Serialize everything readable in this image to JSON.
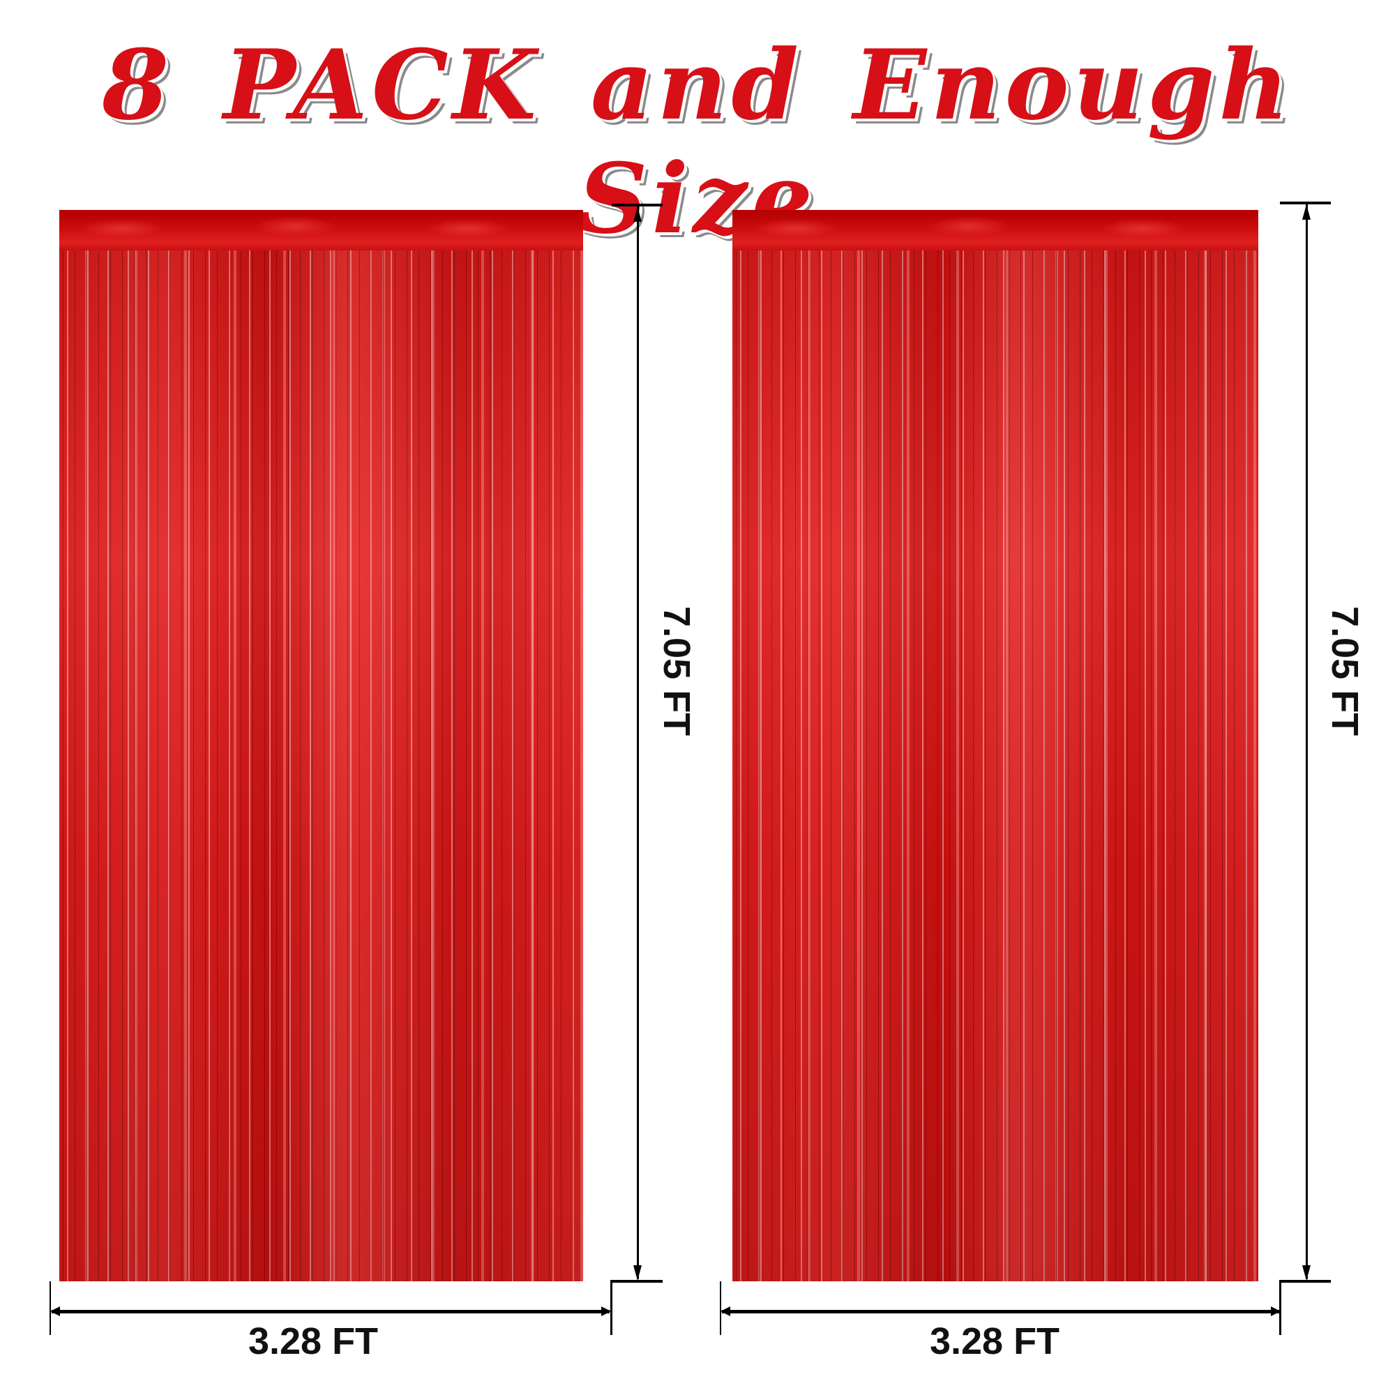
{
  "title": "8 PACK and Enough Size",
  "colors": {
    "title": "#d70f17",
    "curtain": "#d81818"
  },
  "curtains": [
    {
      "height_label": "7.05 FT",
      "width_label": "3.28 FT"
    },
    {
      "height_label": "7.05 FT",
      "width_label": "3.28 FT"
    }
  ]
}
